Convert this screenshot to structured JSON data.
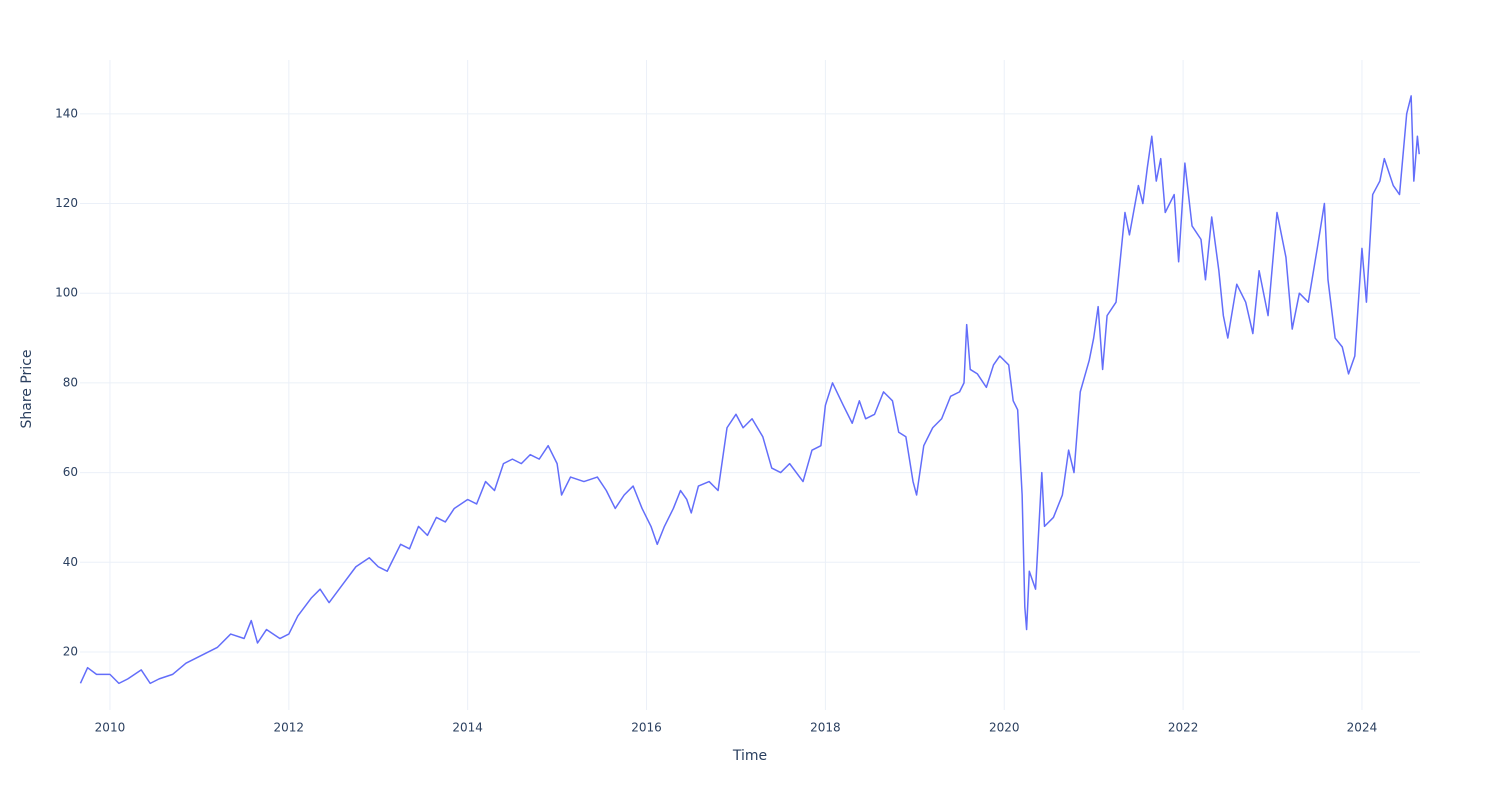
{
  "chart_data": {
    "type": "line",
    "xlabel": "Time",
    "ylabel": "Share Price",
    "color": "#636efa",
    "grid": true,
    "xlim": [
      2009.665,
      2024.649
    ],
    "xticks": [
      2010,
      2012,
      2014,
      2016,
      2018,
      2020,
      2022,
      2024
    ],
    "ylim": [
      7.06,
      152.0
    ],
    "yticks": [
      20,
      40,
      60,
      80,
      100,
      120,
      140
    ],
    "x": [
      2009.67,
      2009.75,
      2009.85,
      2010.0,
      2010.1,
      2010.2,
      2010.35,
      2010.45,
      2010.55,
      2010.7,
      2010.85,
      2011.0,
      2011.2,
      2011.35,
      2011.5,
      2011.58,
      2011.65,
      2011.75,
      2011.9,
      2012.0,
      2012.1,
      2012.25,
      2012.35,
      2012.45,
      2012.6,
      2012.75,
      2012.9,
      2013.0,
      2013.1,
      2013.25,
      2013.35,
      2013.45,
      2013.55,
      2013.65,
      2013.75,
      2013.85,
      2014.0,
      2014.1,
      2014.2,
      2014.3,
      2014.4,
      2014.5,
      2014.6,
      2014.7,
      2014.8,
      2014.9,
      2015.0,
      2015.05,
      2015.15,
      2015.3,
      2015.45,
      2015.55,
      2015.65,
      2015.75,
      2015.85,
      2015.95,
      2016.05,
      2016.12,
      2016.2,
      2016.3,
      2016.38,
      2016.45,
      2016.5,
      2016.58,
      2016.7,
      2016.8,
      2016.9,
      2017.0,
      2017.08,
      2017.18,
      2017.3,
      2017.4,
      2017.5,
      2017.6,
      2017.75,
      2017.85,
      2017.95,
      2018.0,
      2018.08,
      2018.2,
      2018.3,
      2018.38,
      2018.45,
      2018.55,
      2018.65,
      2018.75,
      2018.82,
      2018.9,
      2018.98,
      2019.02,
      2019.1,
      2019.2,
      2019.3,
      2019.4,
      2019.5,
      2019.55,
      2019.58,
      2019.62,
      2019.7,
      2019.8,
      2019.88,
      2019.95,
      2020.05,
      2020.1,
      2020.15,
      2020.2,
      2020.23,
      2020.25,
      2020.28,
      2020.35,
      2020.42,
      2020.45,
      2020.55,
      2020.65,
      2020.72,
      2020.78,
      2020.85,
      2020.95,
      2021.0,
      2021.05,
      2021.1,
      2021.15,
      2021.25,
      2021.35,
      2021.4,
      2021.5,
      2021.55,
      2021.6,
      2021.65,
      2021.7,
      2021.75,
      2021.8,
      2021.9,
      2021.95,
      2022.02,
      2022.1,
      2022.2,
      2022.25,
      2022.32,
      2022.4,
      2022.45,
      2022.5,
      2022.6,
      2022.7,
      2022.78,
      2022.85,
      2022.95,
      2023.05,
      2023.15,
      2023.22,
      2023.3,
      2023.4,
      2023.5,
      2023.58,
      2023.62,
      2023.7,
      2023.78,
      2023.85,
      2023.92,
      2024.0,
      2024.05,
      2024.12,
      2024.2,
      2024.25,
      2024.35,
      2024.42,
      2024.5,
      2024.55,
      2024.58,
      2024.62,
      2024.64
    ],
    "values": [
      13,
      16.5,
      15,
      15,
      13,
      14,
      16,
      13,
      14,
      15,
      17.5,
      19,
      21,
      24,
      23,
      27,
      22,
      25,
      23,
      24,
      28,
      32,
      34,
      31,
      35,
      39,
      41,
      39,
      38,
      44,
      43,
      48,
      46,
      50,
      49,
      52,
      54,
      53,
      58,
      56,
      62,
      63,
      62,
      64,
      63,
      66,
      62,
      55,
      59,
      58,
      59,
      56,
      52,
      55,
      57,
      52,
      48,
      44,
      48,
      52,
      56,
      54,
      51,
      57,
      58,
      56,
      70,
      73,
      70,
      72,
      68,
      61,
      60,
      62,
      58,
      65,
      66,
      75,
      80,
      75,
      71,
      76,
      72,
      73,
      78,
      76,
      69,
      68,
      58,
      55,
      66,
      70,
      72,
      77,
      78,
      80,
      93,
      83,
      82,
      79,
      84,
      86,
      84,
      76,
      74,
      55,
      30,
      25,
      38,
      34,
      60,
      48,
      50,
      55,
      65,
      60,
      78,
      85,
      90,
      97,
      83,
      95,
      98,
      118,
      113,
      124,
      120,
      128,
      135,
      125,
      130,
      118,
      122,
      107,
      129,
      115,
      112,
      103,
      117,
      105,
      95,
      90,
      102,
      98,
      91,
      105,
      95,
      118,
      108,
      92,
      100,
      98,
      110,
      120,
      103,
      90,
      88,
      82,
      86,
      110,
      98,
      122,
      125,
      130,
      124,
      122,
      140,
      144,
      125,
      135,
      131
    ]
  }
}
